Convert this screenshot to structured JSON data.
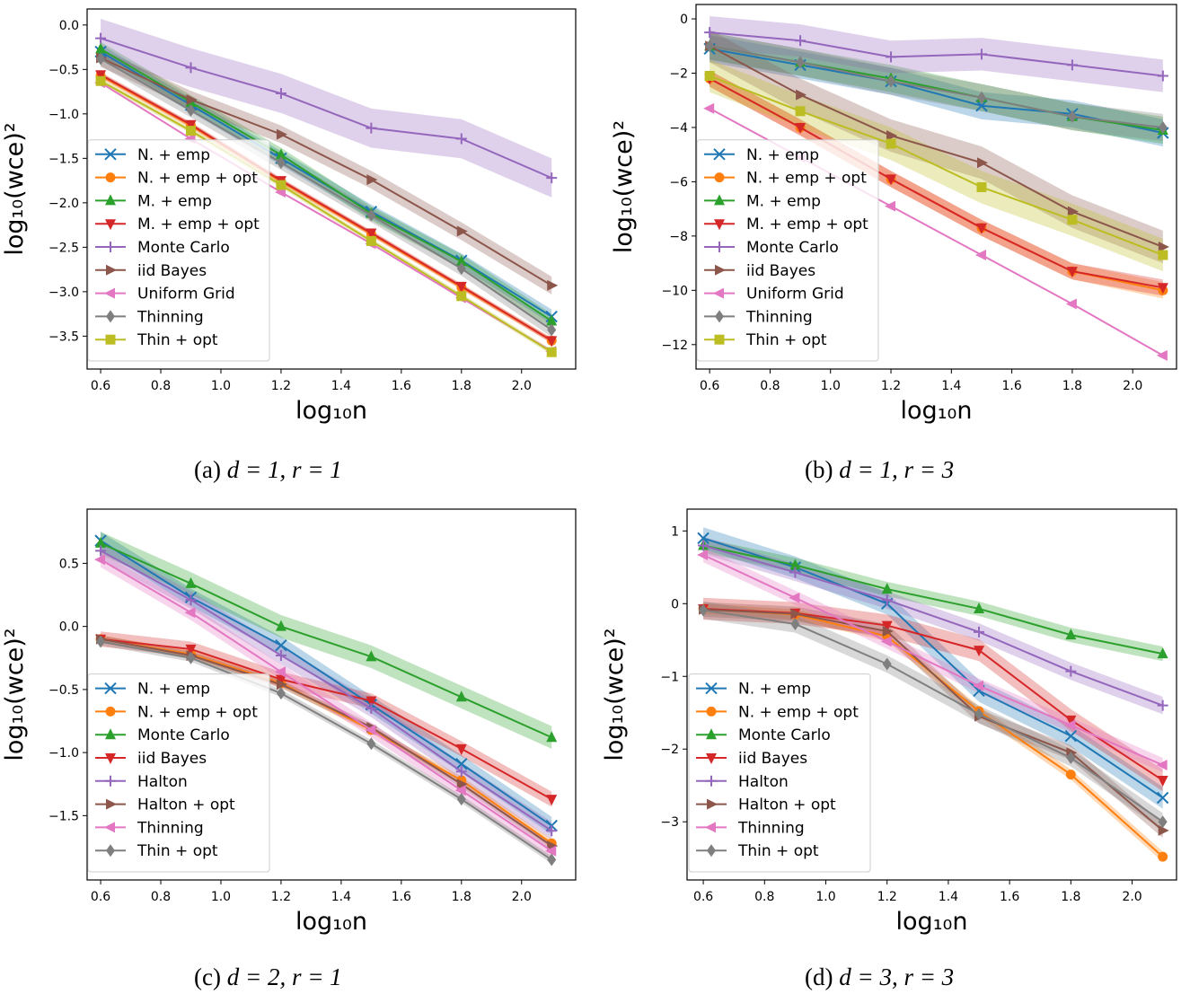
{
  "colors": {
    "N. + emp": "#1f77b4",
    "N. + emp + opt": "#ff7f0e",
    "M. + emp": "#2ca02c",
    "M. + emp + opt": "#d62728",
    "Monte Carlo": "#9467bd",
    "iid Bayes": "#8c564b",
    "Uniform Grid": "#e377c2",
    "Thinning": "#7f7f7f",
    "Thin + opt": "#bcbd22",
    "Halton": "#9467bd",
    "Halton + opt": "#8c564b"
  },
  "chart_data": [
    {
      "type": "line",
      "caption": {
        "label": "(a)",
        "math": "d = 1, r = 1"
      },
      "xlabel": "log₁₀n",
      "ylabel": "log₁₀(wce)²",
      "xlim": [
        0.555,
        2.18
      ],
      "ylim": [
        -3.87,
        0.18
      ],
      "xticks": [
        "0.6",
        "0.8",
        "1.0",
        "1.2",
        "1.4",
        "1.6",
        "1.8",
        "2.0"
      ],
      "yticks": [
        "0.0",
        "−0.5",
        "−1.0",
        "−1.5",
        "−2.0",
        "−2.5",
        "−3.0",
        "−3.5"
      ],
      "x": [
        0.6,
        0.9,
        1.2,
        1.5,
        1.8,
        2.1
      ],
      "legend": "lower-left",
      "grid": false,
      "series": [
        {
          "name": "N. + emp",
          "marker": "x",
          "color": "#1f77b4",
          "band": 0.08,
          "values": [
            -0.3,
            -0.9,
            -1.5,
            -2.1,
            -2.65,
            -3.28
          ]
        },
        {
          "name": "N. + emp + opt",
          "marker": "o",
          "color": "#ff7f0e",
          "band": 0.03,
          "values": [
            -0.57,
            -1.13,
            -1.76,
            -2.35,
            -2.95,
            -3.55
          ]
        },
        {
          "name": "M. + emp",
          "marker": "^",
          "color": "#2ca02c",
          "band": 0.08,
          "values": [
            -0.27,
            -0.87,
            -1.46,
            -2.12,
            -2.66,
            -3.33
          ]
        },
        {
          "name": "M. + emp + opt",
          "marker": "v",
          "color": "#d62728",
          "band": 0.03,
          "values": [
            -0.56,
            -1.12,
            -1.75,
            -2.34,
            -2.94,
            -3.55
          ]
        },
        {
          "name": "Monte Carlo",
          "marker": "+",
          "color": "#9467bd",
          "band": 0.22,
          "values": [
            -0.15,
            -0.48,
            -0.77,
            -1.16,
            -1.28,
            -1.72
          ]
        },
        {
          "name": "iid Bayes",
          "marker": ">",
          "color": "#8c564b",
          "band": 0.1,
          "values": [
            -0.37,
            -0.84,
            -1.23,
            -1.74,
            -2.32,
            -2.93
          ]
        },
        {
          "name": "Uniform Grid",
          "marker": "<",
          "color": "#e377c2",
          "band": 0,
          "values": [
            -0.65,
            -1.28,
            -1.88,
            -2.46,
            -3.07,
            -3.67
          ]
        },
        {
          "name": "Thinning",
          "marker": "d",
          "color": "#7f7f7f",
          "band": 0.08,
          "values": [
            -0.38,
            -0.96,
            -1.55,
            -2.14,
            -2.74,
            -3.43
          ]
        },
        {
          "name": "Thin + opt",
          "marker": "s",
          "color": "#bcbd22",
          "band": 0.03,
          "values": [
            -0.63,
            -1.19,
            -1.8,
            -2.43,
            -3.05,
            -3.68
          ]
        }
      ]
    },
    {
      "type": "line",
      "caption": {
        "label": "(b)",
        "math": "d = 1, r = 3"
      },
      "xlabel": "log₁₀n",
      "ylabel": "log₁₀(wce)²",
      "xlim": [
        0.555,
        2.145
      ],
      "ylim": [
        -12.9,
        0.53
      ],
      "xticks": [
        "0.6",
        "0.8",
        "1.0",
        "1.2",
        "1.4",
        "1.6",
        "1.8",
        "2.0"
      ],
      "yticks": [
        "0",
        "−2",
        "−4",
        "−6",
        "−8",
        "−10",
        "−12"
      ],
      "x": [
        0.6,
        0.9,
        1.2,
        1.5,
        1.8,
        2.1
      ],
      "legend": "lower-left",
      "grid": false,
      "series": [
        {
          "name": "N. + emp",
          "marker": "x",
          "color": "#1f77b4",
          "band": 0.5,
          "values": [
            -1.1,
            -1.7,
            -2.3,
            -3.2,
            -3.5,
            -4.2
          ]
        },
        {
          "name": "N. + emp + opt",
          "marker": "o",
          "color": "#ff7f0e",
          "band": 0.3,
          "values": [
            -2.2,
            -4.0,
            -5.9,
            -7.7,
            -9.3,
            -10.0
          ]
        },
        {
          "name": "M. + emp",
          "marker": "^",
          "color": "#2ca02c",
          "band": 0.5,
          "values": [
            -1.0,
            -1.6,
            -2.2,
            -2.9,
            -3.6,
            -4.1
          ]
        },
        {
          "name": "M. + emp + opt",
          "marker": "v",
          "color": "#d62728",
          "band": 0.3,
          "values": [
            -2.2,
            -4.0,
            -5.9,
            -7.7,
            -9.3,
            -9.9
          ]
        },
        {
          "name": "Monte Carlo",
          "marker": "+",
          "color": "#9467bd",
          "band": 0.6,
          "values": [
            -0.5,
            -0.8,
            -1.4,
            -1.3,
            -1.7,
            -2.1
          ]
        },
        {
          "name": "iid Bayes",
          "marker": ">",
          "color": "#8c564b",
          "band": 0.6,
          "values": [
            -1.0,
            -2.8,
            -4.3,
            -5.3,
            -7.1,
            -8.4
          ]
        },
        {
          "name": "Uniform Grid",
          "marker": "<",
          "color": "#e377c2",
          "band": 0,
          "values": [
            -3.3,
            -5.1,
            -6.9,
            -8.7,
            -10.5,
            -12.4
          ]
        },
        {
          "name": "Thinning",
          "marker": "d",
          "color": "#7f7f7f",
          "band": 0.5,
          "values": [
            -1.0,
            -1.6,
            -2.3,
            -2.9,
            -3.6,
            -4.0
          ]
        },
        {
          "name": "Thin + opt",
          "marker": "s",
          "color": "#bcbd22",
          "band": 0.6,
          "values": [
            -2.1,
            -3.4,
            -4.6,
            -6.2,
            -7.4,
            -8.7
          ]
        }
      ]
    },
    {
      "type": "line",
      "caption": {
        "label": "(c)",
        "math": "d = 2, r = 1"
      },
      "xlabel": "log₁₀n",
      "ylabel": "log₁₀(wce)²",
      "xlim": [
        0.555,
        2.18
      ],
      "ylim": [
        -2.01,
        0.93
      ],
      "xticks": [
        "0.6",
        "0.8",
        "1.0",
        "1.2",
        "1.4",
        "1.6",
        "1.8",
        "2.0"
      ],
      "yticks": [
        "0.5",
        "0.0",
        "−0.5",
        "−1.0",
        "−1.5"
      ],
      "x": [
        0.6,
        0.9,
        1.2,
        1.5,
        1.8,
        2.1
      ],
      "legend": "lower-left",
      "grid": false,
      "series": [
        {
          "name": "N. + emp",
          "marker": "x",
          "color": "#1f77b4",
          "band": 0.07,
          "values": [
            0.68,
            0.23,
            -0.15,
            -0.62,
            -1.09,
            -1.58
          ]
        },
        {
          "name": "N. + emp + opt",
          "marker": "o",
          "color": "#ff7f0e",
          "band": 0.03,
          "values": [
            -0.1,
            -0.22,
            -0.45,
            -0.82,
            -1.22,
            -1.72
          ]
        },
        {
          "name": "Monte Carlo",
          "marker": "^",
          "color": "#2ca02c",
          "band": 0.09,
          "values": [
            0.66,
            0.34,
            0.0,
            -0.24,
            -0.56,
            -0.88
          ]
        },
        {
          "name": "iid Bayes",
          "marker": "v",
          "color": "#d62728",
          "band": 0.06,
          "values": [
            -0.1,
            -0.18,
            -0.42,
            -0.59,
            -0.97,
            -1.37
          ]
        },
        {
          "name": "Halton",
          "marker": "+",
          "color": "#9467bd",
          "band": 0.07,
          "values": [
            0.6,
            0.21,
            -0.23,
            -0.65,
            -1.15,
            -1.62
          ]
        },
        {
          "name": "Halton + opt",
          "marker": ">",
          "color": "#8c564b",
          "band": 0.03,
          "values": [
            -0.1,
            -0.23,
            -0.46,
            -0.8,
            -1.25,
            -1.74
          ]
        },
        {
          "name": "Thinning",
          "marker": "<",
          "color": "#e377c2",
          "band": 0.06,
          "values": [
            0.53,
            0.11,
            -0.36,
            -0.82,
            -1.3,
            -1.78
          ]
        },
        {
          "name": "Thin + opt",
          "marker": "d",
          "color": "#7f7f7f",
          "band": 0.03,
          "values": [
            -0.12,
            -0.25,
            -0.53,
            -0.93,
            -1.37,
            -1.85
          ]
        }
      ]
    },
    {
      "type": "line",
      "caption": {
        "label": "(d)",
        "math": "d = 3, r = 3"
      },
      "xlabel": "log₁₀n",
      "ylabel": "log₁₀(wce)²",
      "xlim": [
        0.547,
        2.145
      ],
      "ylim": [
        -3.8,
        1.3
      ],
      "xticks": [
        "0.6",
        "0.8",
        "1.0",
        "1.2",
        "1.4",
        "1.6",
        "1.8",
        "2.0"
      ],
      "yticks": [
        "1",
        "0",
        "−1",
        "−2",
        "−3"
      ],
      "x": [
        0.6,
        0.9,
        1.2,
        1.5,
        1.8,
        2.1
      ],
      "legend": "lower-left",
      "grid": false,
      "series": [
        {
          "name": "N. + emp",
          "marker": "x",
          "color": "#1f77b4",
          "band": 0.15,
          "values": [
            0.9,
            0.5,
            0.0,
            -1.2,
            -1.82,
            -2.67
          ]
        },
        {
          "name": "N. + emp + opt",
          "marker": "o",
          "color": "#ff7f0e",
          "band": 0.07,
          "values": [
            -0.07,
            -0.15,
            -0.45,
            -1.48,
            -2.35,
            -3.48
          ]
        },
        {
          "name": "Monte Carlo",
          "marker": "^",
          "color": "#2ca02c",
          "band": 0.1,
          "values": [
            0.8,
            0.53,
            0.2,
            -0.07,
            -0.43,
            -0.69
          ]
        },
        {
          "name": "iid Bayes",
          "marker": "v",
          "color": "#d62728",
          "band": 0.15,
          "values": [
            -0.07,
            -0.13,
            -0.3,
            -0.64,
            -1.6,
            -2.43
          ]
        },
        {
          "name": "Halton",
          "marker": "+",
          "color": "#9467bd",
          "band": 0.12,
          "values": [
            0.8,
            0.43,
            0.05,
            -0.39,
            -0.93,
            -1.4
          ]
        },
        {
          "name": "Halton + opt",
          "marker": ">",
          "color": "#8c564b",
          "band": 0.1,
          "values": [
            -0.08,
            -0.14,
            -0.38,
            -1.55,
            -2.05,
            -3.12
          ]
        },
        {
          "name": "Thinning",
          "marker": "<",
          "color": "#e377c2",
          "band": 0.1,
          "values": [
            0.67,
            0.08,
            -0.52,
            -1.13,
            -1.67,
            -2.22
          ]
        },
        {
          "name": "Thin + opt",
          "marker": "d",
          "color": "#7f7f7f",
          "band": 0.12,
          "values": [
            -0.09,
            -0.28,
            -0.83,
            -1.52,
            -2.12,
            -3.0
          ]
        }
      ]
    }
  ]
}
